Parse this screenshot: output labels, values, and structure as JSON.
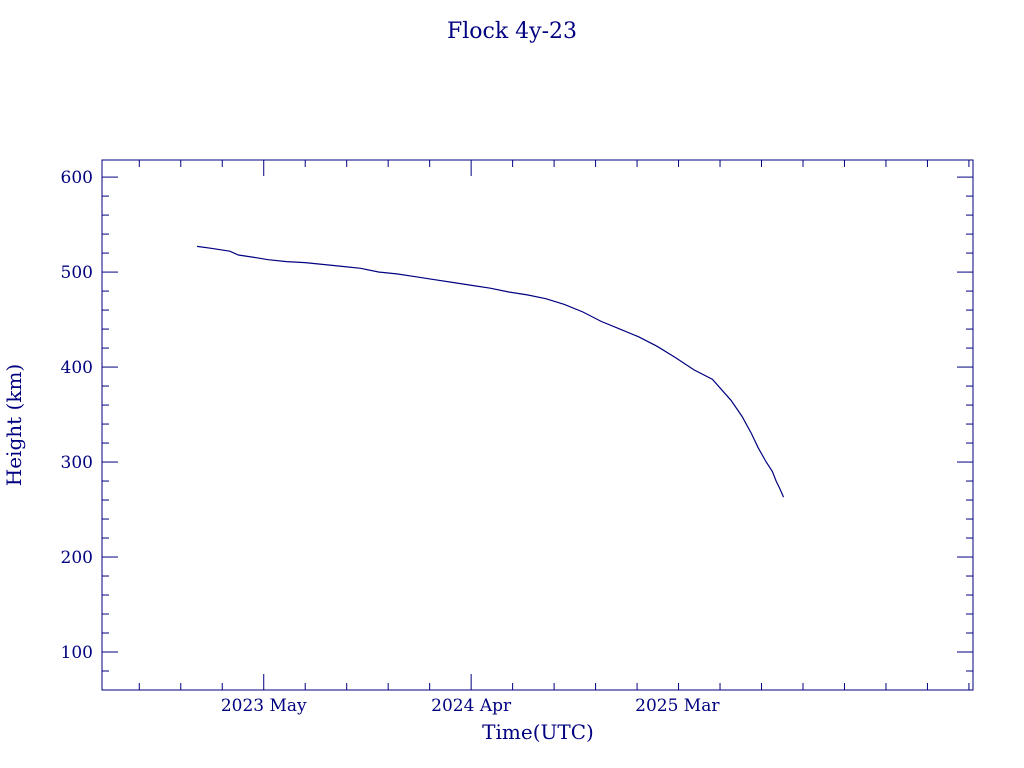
{
  "chart_data": {
    "type": "line",
    "title": "Flock 4y-23",
    "xlabel": "Time(UTC)",
    "ylabel": "Height (km)",
    "x_type": "date",
    "xlim": [
      "2022-08-12",
      "2026-06-23"
    ],
    "ylim": [
      60,
      618
    ],
    "yticks": [
      100,
      200,
      300,
      400,
      500,
      600
    ],
    "xtick_labels": [
      {
        "date": "2023-05-01",
        "label": "2023 May"
      },
      {
        "date": "2024-04-01",
        "label": "2024 Apr"
      },
      {
        "date": "2025-03-01",
        "label": "2025 Mar"
      }
    ],
    "grid": false,
    "color": "#000080",
    "series": [
      {
        "x": [
          "2023-01-13",
          "2023-02-05",
          "2023-03-07",
          "2023-03-21",
          "2023-04-20",
          "2023-05-08",
          "2023-06-07",
          "2023-07-07",
          "2023-08-06",
          "2023-09-05",
          "2023-10-05",
          "2023-11-04",
          "2023-12-04",
          "2024-01-03",
          "2024-02-02",
          "2024-03-03",
          "2024-04-02",
          "2024-05-02",
          "2024-06-01",
          "2024-07-01",
          "2024-07-31",
          "2024-08-30",
          "2024-09-29",
          "2024-10-29",
          "2024-11-28",
          "2024-12-28",
          "2025-01-27",
          "2025-02-26",
          "2025-03-28",
          "2025-04-27",
          "2025-05-27",
          "2025-06-14",
          "2025-06-29",
          "2025-07-10",
          "2025-07-23",
          "2025-08-02",
          "2025-08-08",
          "2025-08-14",
          "2025-08-18",
          "2025-08-20"
        ],
        "y": [
          527,
          525,
          522,
          518,
          515,
          513,
          511,
          510,
          508,
          506,
          504,
          500,
          498,
          495,
          492,
          489,
          486,
          483,
          479,
          476,
          472,
          466,
          458,
          448,
          440,
          432,
          422,
          410,
          397,
          387,
          365,
          348,
          330,
          315,
          300,
          290,
          280,
          272,
          266,
          263
        ]
      }
    ]
  }
}
